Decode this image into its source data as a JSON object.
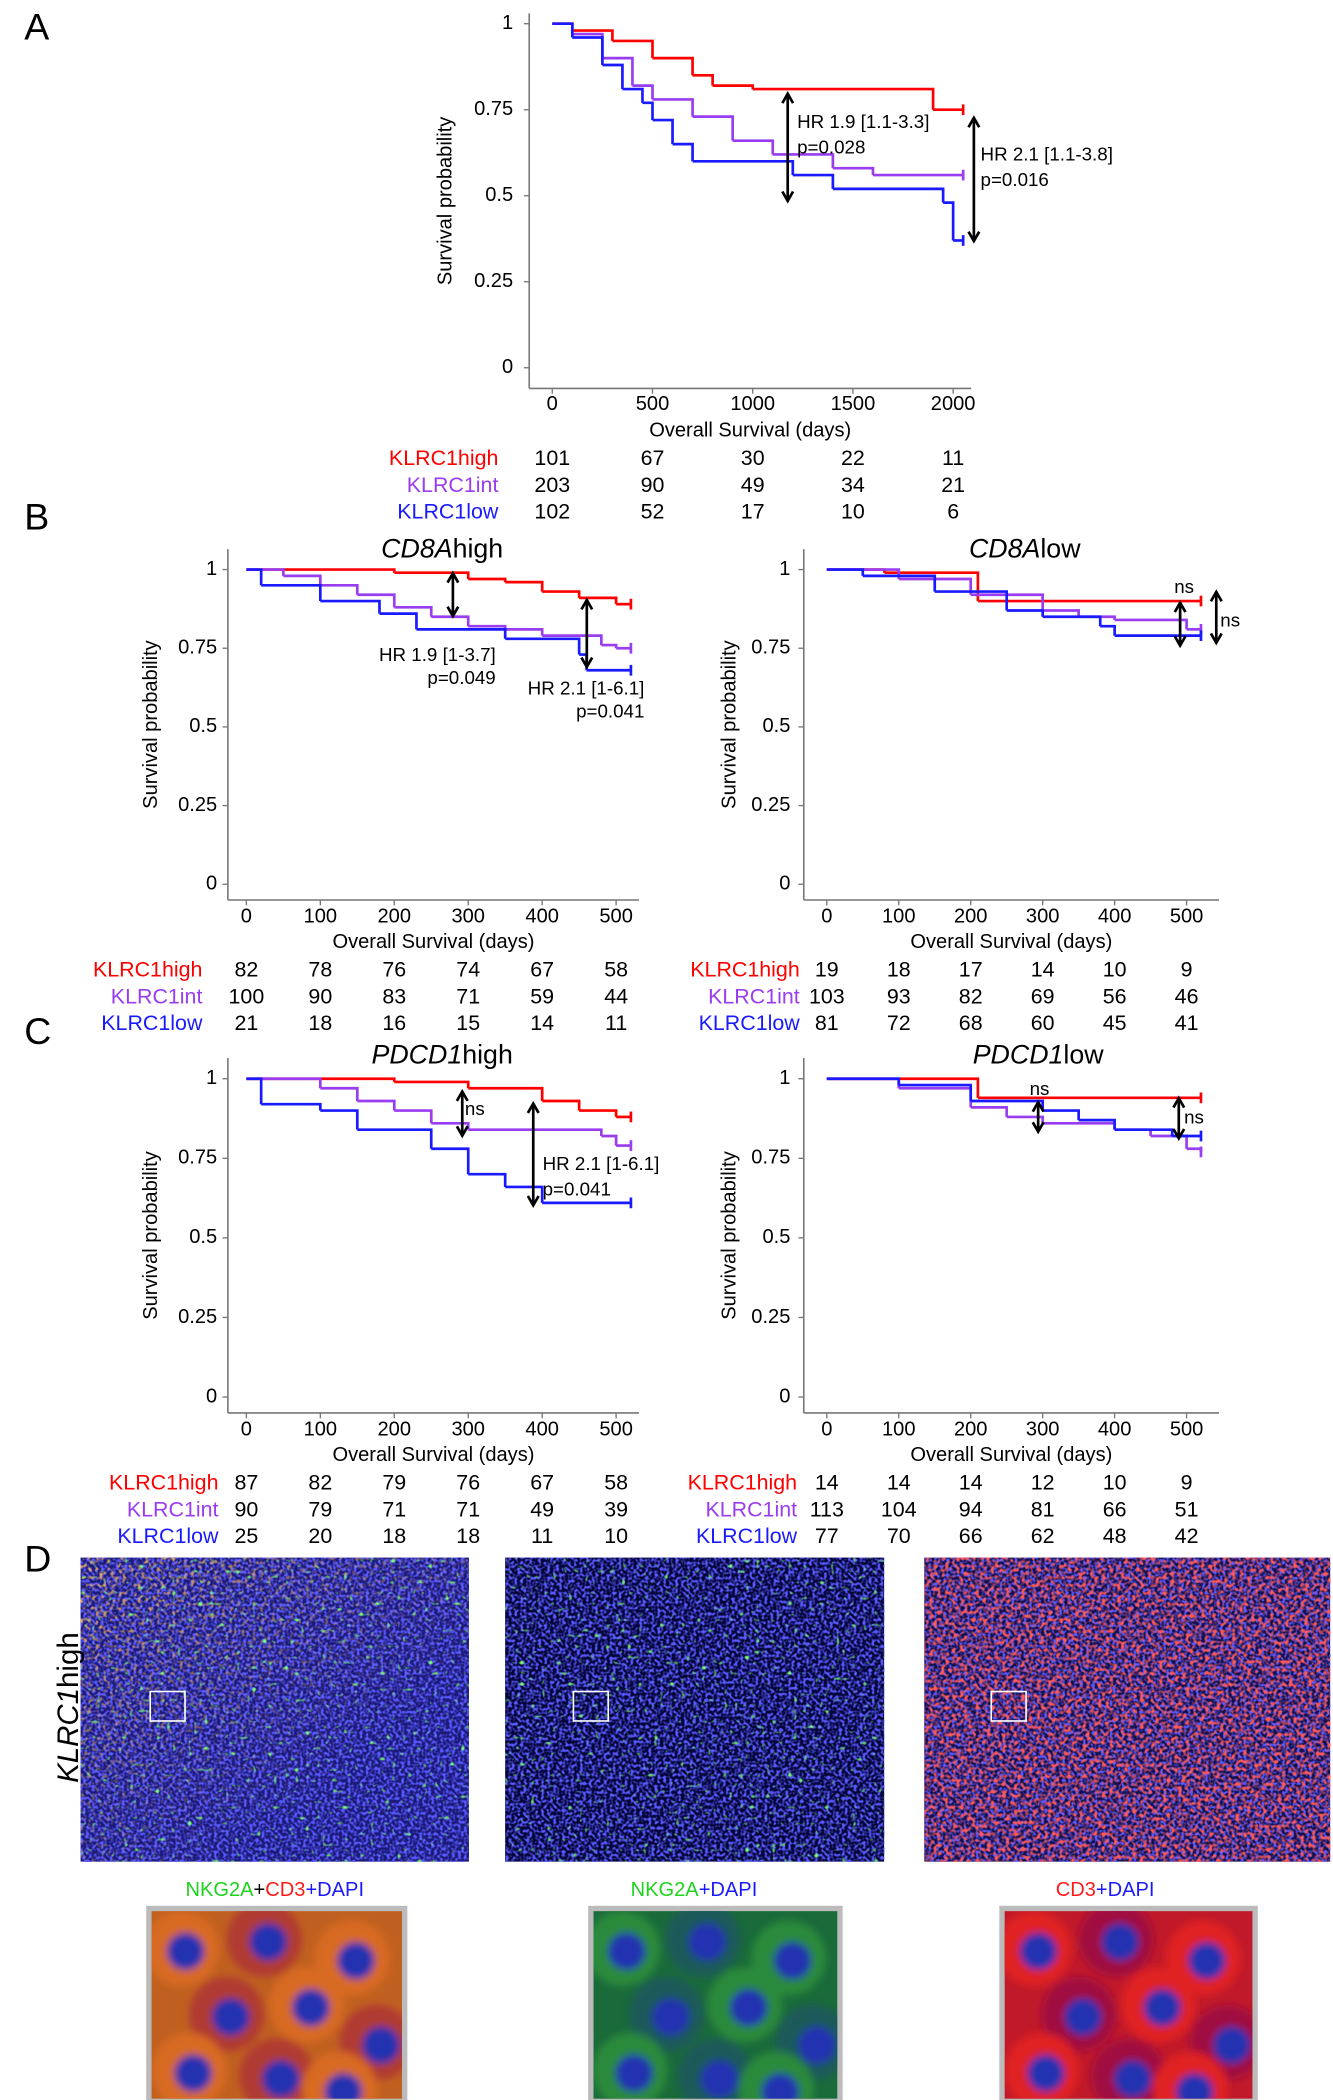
{
  "figure": {
    "panel_labels": [
      "A",
      "B",
      "C",
      "D"
    ]
  },
  "chart_data": [
    {
      "type": "step",
      "x_label": "Overall Survival (days)",
      "y_label": "Survival probability",
      "xlim": [
        -115,
        2090
      ],
      "ylim": [
        -0.06,
        1.03
      ],
      "xticks": [
        0,
        500,
        1000,
        1500,
        2000
      ],
      "yticks": [
        0,
        0.25,
        0.5,
        0.75,
        1
      ],
      "series": [
        {
          "name": "KLRC1high",
          "color": "#ff0000",
          "x": [
            0,
            100,
            300,
            500,
            700,
            800,
            1000,
            1900,
            2050
          ],
          "values": [
            1,
            0.98,
            0.95,
            0.9,
            0.85,
            0.82,
            0.81,
            0.75,
            0.75
          ],
          "at_risk": [
            101,
            67,
            30,
            22,
            11
          ]
        },
        {
          "name": "KLRC1int",
          "color": "#9a3cf0",
          "x": [
            0,
            100,
            250,
            400,
            500,
            700,
            900,
            1100,
            1400,
            1600,
            2050
          ],
          "values": [
            1,
            0.97,
            0.9,
            0.82,
            0.78,
            0.73,
            0.66,
            0.62,
            0.58,
            0.56,
            0.56
          ],
          "at_risk": [
            203,
            90,
            49,
            34,
            21
          ]
        },
        {
          "name": "KLRC1low",
          "color": "#1a1aff",
          "x": [
            0,
            100,
            250,
            350,
            450,
            500,
            600,
            700,
            1200,
            1400,
            1950,
            2000,
            2050
          ],
          "values": [
            1,
            0.96,
            0.88,
            0.81,
            0.77,
            0.72,
            0.65,
            0.6,
            0.56,
            0.52,
            0.48,
            0.37,
            0.37
          ],
          "at_risk": [
            102,
            52,
            17,
            10,
            6
          ]
        }
      ],
      "annotations": [
        "HR 1.9 [1.1-3.3]",
        "p=0.028",
        "HR 2.1 [1.1-3.8]",
        "p=0.016"
      ]
    },
    {
      "type": "step",
      "title_gene": "CD8A",
      "title_suffix": "high",
      "x_label": "Overall Survival (days)",
      "y_label": "Survival probability",
      "xlim": [
        -25,
        531
      ],
      "ylim": [
        -0.05,
        1.065
      ],
      "xticks": [
        0,
        100,
        200,
        300,
        400,
        500
      ],
      "yticks": [
        0,
        0.25,
        0.5,
        0.75,
        1
      ],
      "series": [
        {
          "name": "KLRC1high",
          "color": "#ff0000",
          "x": [
            0,
            200,
            300,
            350,
            400,
            450,
            500,
            520
          ],
          "values": [
            1,
            0.99,
            0.97,
            0.96,
            0.93,
            0.91,
            0.89,
            0.89
          ],
          "at_risk": [
            82,
            78,
            76,
            74,
            67,
            58
          ]
        },
        {
          "name": "KLRC1int",
          "color": "#9a3cf0",
          "x": [
            0,
            50,
            100,
            150,
            200,
            250,
            300,
            350,
            400,
            480,
            500,
            520
          ],
          "values": [
            1,
            0.98,
            0.95,
            0.92,
            0.88,
            0.85,
            0.82,
            0.81,
            0.79,
            0.76,
            0.75,
            0.75
          ],
          "at_risk": [
            100,
            90,
            83,
            71,
            59,
            44
          ]
        },
        {
          "name": "KLRC1low",
          "color": "#1a1aff",
          "x": [
            0,
            20,
            100,
            180,
            230,
            350,
            450,
            460,
            520
          ],
          "values": [
            1,
            0.95,
            0.9,
            0.86,
            0.81,
            0.78,
            0.73,
            0.68,
            0.68
          ],
          "at_risk": [
            21,
            18,
            16,
            15,
            14,
            11
          ]
        }
      ],
      "annotations": [
        "HR 1.9 [1-3.7]",
        "p=0.049",
        "HR 2.1 [1-6.1]",
        "p=0.041"
      ]
    },
    {
      "type": "step",
      "title_gene": "CD8A",
      "title_suffix": "low",
      "x_label": "Overall Survival (days)",
      "y_label": "Survival probability",
      "xlim": [
        -32,
        545
      ],
      "ylim": [
        -0.05,
        1.065
      ],
      "xticks": [
        0,
        100,
        200,
        300,
        400,
        500
      ],
      "yticks": [
        0,
        0.25,
        0.5,
        0.75,
        1
      ],
      "series": [
        {
          "name": "KLRC1high",
          "color": "#ff0000",
          "x": [
            0,
            80,
            210,
            520
          ],
          "values": [
            1,
            0.99,
            0.9,
            0.9
          ],
          "at_risk": [
            19,
            18,
            17,
            14,
            10,
            9
          ]
        },
        {
          "name": "KLRC1int",
          "color": "#9a3cf0",
          "x": [
            0,
            100,
            200,
            300,
            350,
            400,
            500,
            520
          ],
          "values": [
            1,
            0.97,
            0.92,
            0.87,
            0.85,
            0.84,
            0.81,
            0.81
          ],
          "at_risk": [
            103,
            93,
            82,
            69,
            56,
            46
          ]
        },
        {
          "name": "KLRC1low",
          "color": "#1a1aff",
          "x": [
            0,
            50,
            150,
            250,
            300,
            380,
            400,
            520
          ],
          "values": [
            1,
            0.98,
            0.93,
            0.87,
            0.85,
            0.82,
            0.79,
            0.79
          ],
          "at_risk": [
            81,
            72,
            68,
            60,
            45,
            41
          ]
        }
      ],
      "annotations": [
        "ns",
        "ns"
      ]
    },
    {
      "type": "step",
      "title_gene": "PDCD1",
      "title_suffix": "high",
      "x_label": "Overall Survival (days)",
      "y_label": "Survival probability",
      "xlim": [
        -25,
        531
      ],
      "ylim": [
        -0.05,
        1.065
      ],
      "xticks": [
        0,
        100,
        200,
        300,
        400,
        500
      ],
      "yticks": [
        0,
        0.25,
        0.5,
        0.75,
        1
      ],
      "series": [
        {
          "name": "KLRC1high",
          "color": "#ff0000",
          "x": [
            0,
            200,
            300,
            400,
            450,
            500,
            520
          ],
          "values": [
            1,
            0.99,
            0.97,
            0.93,
            0.9,
            0.88,
            0.88
          ],
          "at_risk": [
            87,
            82,
            79,
            76,
            67,
            58
          ]
        },
        {
          "name": "KLRC1int",
          "color": "#9a3cf0",
          "x": [
            0,
            100,
            150,
            200,
            250,
            300,
            480,
            500,
            520
          ],
          "values": [
            1,
            0.97,
            0.93,
            0.9,
            0.86,
            0.84,
            0.82,
            0.79,
            0.79
          ],
          "at_risk": [
            90,
            79,
            71,
            71,
            49,
            39
          ]
        },
        {
          "name": "KLRC1low",
          "color": "#1a1aff",
          "x": [
            0,
            20,
            100,
            150,
            250,
            300,
            350,
            400,
            520
          ],
          "values": [
            1,
            0.92,
            0.9,
            0.84,
            0.78,
            0.7,
            0.66,
            0.61,
            0.61
          ],
          "at_risk": [
            25,
            20,
            18,
            18,
            11,
            10
          ]
        }
      ],
      "annotations": [
        "ns",
        "HR 2.1 [1-6.1]",
        "p=0.041"
      ]
    },
    {
      "type": "step",
      "title_gene": "PDCD1",
      "title_suffix": "low",
      "x_label": "Overall Survival (days)",
      "y_label": "Survival probability",
      "xlim": [
        -32,
        545
      ],
      "ylim": [
        -0.05,
        1.065
      ],
      "xticks": [
        0,
        100,
        200,
        300,
        400,
        500
      ],
      "yticks": [
        0,
        0.25,
        0.5,
        0.75,
        1
      ],
      "series": [
        {
          "name": "KLRC1high",
          "color": "#ff0000",
          "x": [
            0,
            210,
            520
          ],
          "values": [
            1,
            0.94,
            0.94
          ],
          "at_risk": [
            14,
            14,
            14,
            12,
            10,
            9
          ]
        },
        {
          "name": "KLRC1int",
          "color": "#9a3cf0",
          "x": [
            0,
            100,
            200,
            250,
            300,
            400,
            450,
            500,
            520
          ],
          "values": [
            1,
            0.97,
            0.91,
            0.88,
            0.86,
            0.84,
            0.82,
            0.78,
            0.77
          ],
          "at_risk": [
            113,
            104,
            94,
            81,
            66,
            51
          ]
        },
        {
          "name": "KLRC1low",
          "color": "#1a1aff",
          "x": [
            0,
            100,
            200,
            300,
            350,
            400,
            480,
            520
          ],
          "values": [
            1,
            0.98,
            0.93,
            0.9,
            0.87,
            0.84,
            0.82,
            0.82
          ],
          "at_risk": [
            77,
            70,
            66,
            62,
            48,
            42
          ]
        }
      ],
      "annotations": [
        "ns",
        "ns"
      ]
    }
  ],
  "panel_d": {
    "row_label_gene": "KLRC1",
    "row_label_suffix": "high",
    "captions": [
      [
        {
          "text": "NKG2A",
          "color": "#1ed21e"
        },
        {
          "text": "+",
          "color": "#000000"
        },
        {
          "text": "CD3",
          "color": "#ff1a1a"
        },
        {
          "text": "+DAPI",
          "color": "#1a1aff"
        }
      ],
      [
        {
          "text": "NKG2A",
          "color": "#1ed21e"
        },
        {
          "text": "+DAPI",
          "color": "#1a1aff"
        }
      ],
      [
        {
          "text": "CD3",
          "color": "#ff1a1a"
        },
        {
          "text": "+DAPI",
          "color": "#1a1aff"
        }
      ]
    ]
  }
}
